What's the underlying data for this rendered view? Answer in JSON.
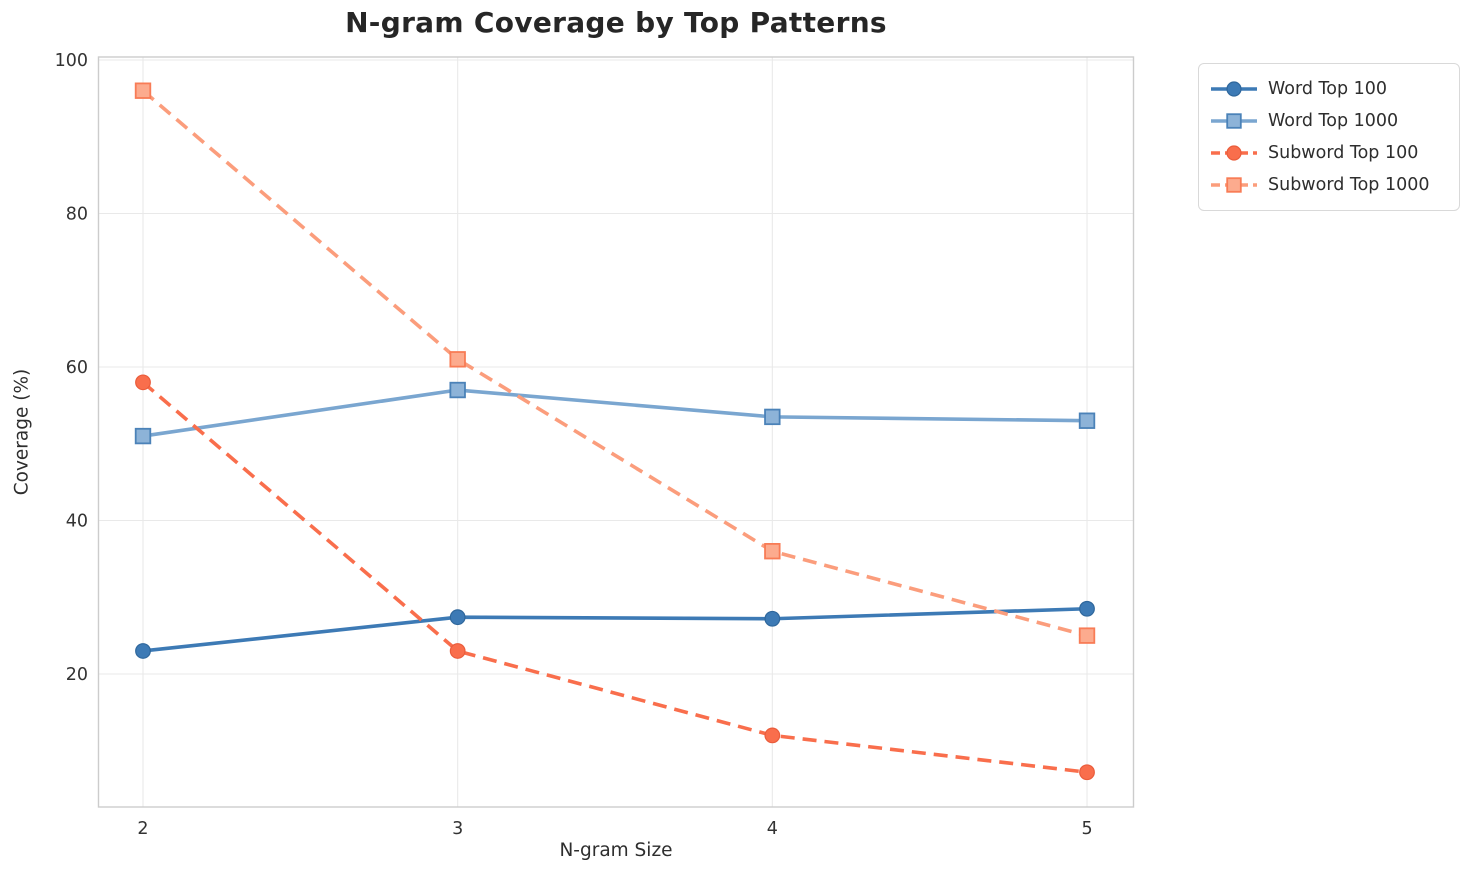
{
  "chart_data": {
    "type": "line",
    "title": "N-gram Coverage by Top Patterns",
    "xlabel": "N-gram Size",
    "ylabel": "Coverage (%)",
    "x": [
      2,
      3,
      4,
      5
    ],
    "x_tick_labels": [
      "2",
      "3",
      "4",
      "5"
    ],
    "y_ticks": [
      20,
      40,
      60,
      80,
      100
    ],
    "y_tick_labels": [
      "20",
      "40",
      "60",
      "80",
      "100"
    ],
    "xlim": [
      1.85,
      5.15
    ],
    "ylim": [
      2.8,
      100.5
    ],
    "grid": "on",
    "legend_position": "outside-upper-right",
    "series": [
      {
        "name": "Word Top 100",
        "values": [
          23.0,
          27.4,
          27.2,
          28.5
        ],
        "color": "#3d7ab5",
        "marker_fill": "#3d7ab5",
        "marker_edge": "#2f679c",
        "marker": "circle",
        "line_style": "solid"
      },
      {
        "name": "Word Top 1000",
        "values": [
          51.0,
          57.0,
          53.5,
          53.0
        ],
        "color": "#7aa6d0",
        "marker_fill": "#8db3d8",
        "marker_edge": "#4b82b8",
        "marker": "square",
        "line_style": "solid"
      },
      {
        "name": "Subword Top 100",
        "values": [
          58.0,
          23.0,
          12.0,
          7.2
        ],
        "color": "#f96e4c",
        "marker_fill": "#f96e4c",
        "marker_edge": "#ea5c3b",
        "marker": "circle",
        "line_style": "dashed"
      },
      {
        "name": "Subword Top 1000",
        "values": [
          96.0,
          61.0,
          36.0,
          25.0
        ],
        "color": "#fb9d7c",
        "marker_fill": "#fcab8e",
        "marker_edge": "#f87c56",
        "marker": "square",
        "line_style": "dashed"
      }
    ]
  }
}
